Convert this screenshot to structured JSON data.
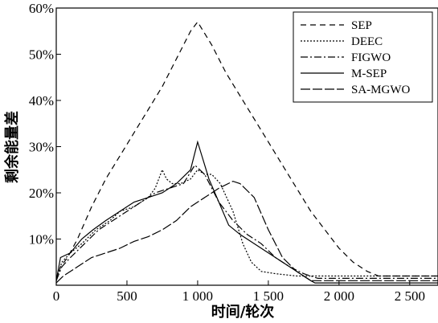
{
  "chart_data": {
    "type": "line",
    "xlabel": "时间/轮次",
    "ylabel": "剩余能量差",
    "xlim": [
      0,
      2700
    ],
    "ylim": [
      0,
      60
    ],
    "x_ticks": [
      0,
      500,
      1000,
      1500,
      2000,
      2500
    ],
    "x_tick_labels": [
      "0",
      "500",
      "1 000",
      "1 500",
      "2 000",
      "2 500"
    ],
    "y_ticks": [
      10,
      20,
      30,
      40,
      50,
      60
    ],
    "y_tick_labels": [
      "10%",
      "20%",
      "30%",
      "40%",
      "50%",
      "60%"
    ],
    "grid": false,
    "legend_position": "top-right",
    "series": [
      {
        "name": "SEP",
        "dash": "7,5",
        "x": [
          0,
          30,
          80,
          150,
          250,
          350,
          450,
          550,
          650,
          750,
          850,
          950,
          1000,
          1100,
          1200,
          1300,
          1400,
          1500,
          1600,
          1700,
          1800,
          1900,
          2000,
          2100,
          2200,
          2280,
          2700
        ],
        "y": [
          1,
          4,
          6,
          10,
          17,
          23,
          28,
          33,
          38,
          43,
          49,
          55,
          57,
          52,
          46,
          41,
          36,
          31,
          26,
          21,
          16,
          12,
          8,
          5,
          3,
          2,
          2
        ]
      },
      {
        "name": "DEEC",
        "dash": "2,2",
        "x": [
          0,
          40,
          100,
          180,
          280,
          380,
          450,
          550,
          650,
          700,
          750,
          780,
          820,
          880,
          950,
          1000,
          1050,
          1100,
          1160,
          1250,
          1320,
          1380,
          1450,
          1550,
          1700,
          2700
        ],
        "y": [
          1,
          5,
          7,
          9,
          12,
          14,
          16,
          17,
          19,
          21,
          25,
          23,
          22,
          22,
          23,
          25,
          24,
          24,
          22,
          16,
          9,
          5,
          3,
          2.5,
          2,
          2
        ]
      },
      {
        "name": "FIGWO",
        "dash": "9,3,2,3",
        "x": [
          0,
          40,
          100,
          200,
          300,
          400,
          500,
          600,
          700,
          800,
          900,
          980,
          1050,
          1150,
          1250,
          1350,
          1450,
          1550,
          1650,
          1750,
          1850,
          2700
        ],
        "y": [
          1,
          4,
          6,
          9,
          12,
          14,
          16,
          18,
          20,
          21,
          22,
          26,
          24,
          18,
          14,
          11,
          9,
          6,
          4,
          2.5,
          1.5,
          1.5
        ]
      },
      {
        "name": "M-SEP",
        "dash": "",
        "x": [
          0,
          30,
          100,
          180,
          260,
          350,
          450,
          550,
          650,
          750,
          850,
          950,
          1000,
          1030,
          1080,
          1150,
          1220,
          1300,
          1400,
          1500,
          1600,
          1700,
          1800,
          1830,
          2700
        ],
        "y": [
          1,
          6,
          7,
          10,
          12,
          14,
          16,
          18,
          19,
          20,
          22,
          25,
          31,
          28,
          23,
          18,
          13,
          11,
          9,
          7,
          5,
          3,
          1,
          0.5,
          0.5
        ]
      },
      {
        "name": "SA-MGWO",
        "dash": "12,3",
        "x": [
          0,
          50,
          150,
          250,
          350,
          450,
          550,
          650,
          750,
          850,
          950,
          1050,
          1150,
          1250,
          1300,
          1400,
          1500,
          1600,
          1700,
          1800,
          2700
        ],
        "y": [
          0.5,
          2,
          4,
          6,
          7,
          8,
          9.5,
          10.5,
          12,
          14,
          17,
          19,
          21,
          22.5,
          22,
          19,
          12,
          6,
          3,
          1,
          1
        ]
      }
    ]
  }
}
